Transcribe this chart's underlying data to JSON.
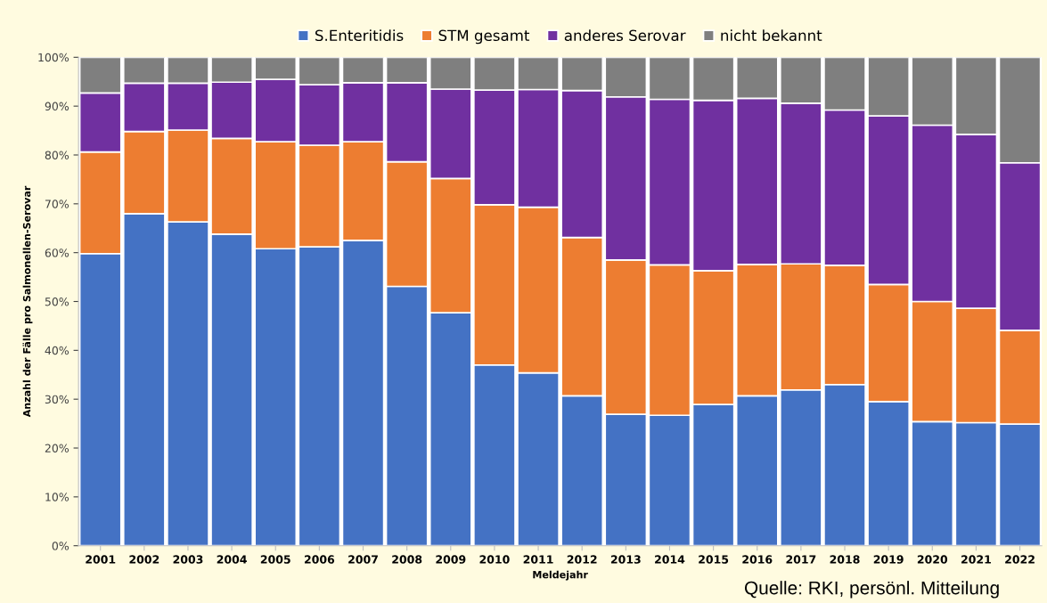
{
  "chart_data": {
    "type": "bar",
    "stacked": true,
    "xlabel": "Meldejahr",
    "ylabel": "Anzahl der Fälle pro Salmonellen-Serovar",
    "categories": [
      "2001",
      "2002",
      "2003",
      "2004",
      "2005",
      "2006",
      "2007",
      "2008",
      "2009",
      "2010",
      "2011",
      "2012",
      "2013",
      "2014",
      "2015",
      "2016",
      "2017",
      "2018",
      "2019",
      "2020",
      "2021",
      "2022"
    ],
    "series": [
      {
        "name": "S.Enteritidis",
        "color": "#4472c4",
        "values": [
          59.8,
          68.0,
          66.3,
          63.8,
          60.8,
          61.2,
          62.5,
          53.1,
          47.7,
          37.0,
          35.4,
          30.7,
          26.9,
          26.7,
          28.9,
          30.7,
          31.9,
          33.0,
          29.5,
          25.4,
          25.2,
          24.9
        ]
      },
      {
        "name": "STM gesamt",
        "color": "#ed7d31",
        "values": [
          20.8,
          16.8,
          18.8,
          19.6,
          21.9,
          20.8,
          20.2,
          25.5,
          27.5,
          32.8,
          33.9,
          32.4,
          31.6,
          30.8,
          27.4,
          26.9,
          25.8,
          24.4,
          24.0,
          24.6,
          23.4,
          19.2
        ]
      },
      {
        "name": "anderes Serovar",
        "color": "#7030a0",
        "values": [
          12.1,
          9.9,
          9.6,
          11.5,
          12.8,
          12.4,
          12.1,
          16.2,
          18.3,
          23.5,
          24.1,
          30.1,
          33.4,
          33.9,
          34.9,
          34.0,
          32.9,
          31.8,
          34.5,
          36.1,
          35.6,
          34.3
        ]
      },
      {
        "name": "nicht bekannt",
        "color": "#7f7f7f",
        "values": [
          7.3,
          5.3,
          5.3,
          5.1,
          4.5,
          5.6,
          5.2,
          5.2,
          6.5,
          6.7,
          6.6,
          6.8,
          8.1,
          8.6,
          8.8,
          8.4,
          9.4,
          10.8,
          12.0,
          13.9,
          15.8,
          21.6
        ]
      }
    ],
    "ylim": [
      0,
      100
    ],
    "yticks": [
      {
        "value": 0,
        "label": "0%"
      },
      {
        "value": 10,
        "label": "10%"
      },
      {
        "value": 20,
        "label": "20%"
      },
      {
        "value": 30,
        "label": "30%"
      },
      {
        "value": 40,
        "label": "40%"
      },
      {
        "value": 50,
        "label": "50%"
      },
      {
        "value": 60,
        "label": "60%"
      },
      {
        "value": 70,
        "label": "70%"
      },
      {
        "value": 80,
        "label": "80%"
      },
      {
        "value": 90,
        "label": "90%"
      },
      {
        "value": 100,
        "label": "100%"
      }
    ],
    "grid": false,
    "legend": "top",
    "annotations": [
      "Quelle: RKI, persönl. Mitteilung"
    ]
  }
}
